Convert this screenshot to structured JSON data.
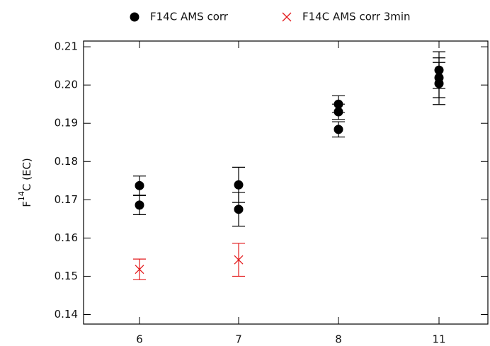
{
  "chart_data": {
    "type": "errorbar_scatter",
    "categories": [
      "6",
      "7",
      "8",
      "11"
    ],
    "ylabel_parts": [
      "F",
      "14",
      "C (EC)"
    ],
    "ylim": [
      0.1375,
      0.2115
    ],
    "yticks": [
      0.14,
      0.15,
      0.16,
      0.17,
      0.18,
      0.19,
      {
        "value": 0.2,
        "label": "0.20"
      },
      0.21
    ],
    "legend": "top",
    "series": [
      {
        "name": "F14C AMS corr",
        "color": "#000000",
        "marker": "circle",
        "x": [
          "6",
          "6",
          "7",
          "7",
          "8",
          "8",
          "8",
          "11",
          "11",
          "11"
        ],
        "values": [
          0.1737,
          0.1686,
          0.1739,
          0.1675,
          0.195,
          0.193,
          0.1884,
          0.2039,
          0.2019,
          0.2004
        ],
        "errors": [
          0.0025,
          0.0025,
          0.0046,
          0.0044,
          0.0022,
          0.002,
          0.002,
          0.0048,
          0.0052,
          0.0055
        ]
      },
      {
        "name": "F14C AMS corr 3min",
        "color": "#e31a1c",
        "marker": "cross",
        "x": [
          "6",
          "7"
        ],
        "values": [
          0.1518,
          0.1543
        ],
        "errors": [
          0.0027,
          0.0043
        ]
      }
    ]
  }
}
